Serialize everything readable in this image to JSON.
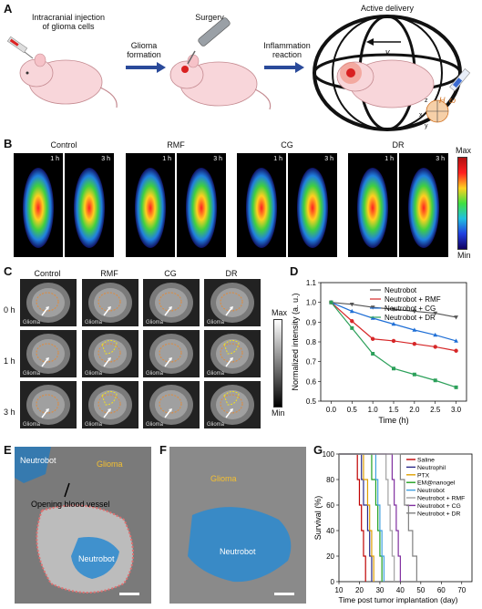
{
  "panels": {
    "A": "A",
    "B": "B",
    "C": "C",
    "D": "D",
    "E": "E",
    "F": "F",
    "G": "G"
  },
  "panelA": {
    "step1": "Intracranial injection\nof glioma cells",
    "arrow1": "Glioma\nformation",
    "step2": "Surgery",
    "arrow2": "Inflammation\nreaction",
    "step3": "Active delivery",
    "v_label": "v",
    "h_label": "H",
    "omega_label": "ω",
    "axis_z": "z",
    "axis_x": "x",
    "axis_y": "y"
  },
  "panelB": {
    "groups": [
      "Control",
      "RMF",
      "CG",
      "DR"
    ],
    "times": [
      "1 h",
      "3 h"
    ],
    "scale_max": "Max",
    "scale_min": "Min"
  },
  "panelC": {
    "groups": [
      "Control",
      "RMF",
      "CG",
      "DR"
    ],
    "rows": [
      "0 h",
      "1 h",
      "3 h"
    ],
    "glioma_label": "Glioma",
    "scale_max": "Max",
    "scale_min": "Min"
  },
  "chart_data": [
    {
      "type": "line",
      "panel": "D",
      "xlabel": "Time (h)",
      "ylabel": "Normalized intensity (a. u.)",
      "xlim": [
        -0.25,
        3.25
      ],
      "ylim": [
        0.5,
        1.1
      ],
      "xticks": [
        0.0,
        0.5,
        1.0,
        1.5,
        2.0,
        2.5,
        3.0
      ],
      "yticks": [
        0.5,
        0.6,
        0.7,
        0.8,
        0.9,
        1.0,
        1.1
      ],
      "legend_position": "top-right",
      "x": [
        0.0,
        0.5,
        1.0,
        1.5,
        2.0,
        2.5,
        3.0
      ],
      "series": [
        {
          "name": "Neutrobot",
          "color": "#555555",
          "marker": "triangle-down",
          "values": [
            1.0,
            0.99,
            0.975,
            0.965,
            0.955,
            0.945,
            0.925
          ]
        },
        {
          "name": "Neutrobot + RMF",
          "color": "#d62728",
          "marker": "circle",
          "values": [
            1.0,
            0.905,
            0.815,
            0.805,
            0.79,
            0.775,
            0.755
          ]
        },
        {
          "name": "Neutrobot + CG",
          "color": "#1f6fd6",
          "marker": "triangle-up",
          "values": [
            1.0,
            0.955,
            0.92,
            0.89,
            0.86,
            0.835,
            0.805
          ]
        },
        {
          "name": "Neutrobot + DR",
          "color": "#2ca05a",
          "marker": "square",
          "values": [
            1.0,
            0.87,
            0.74,
            0.665,
            0.635,
            0.605,
            0.57
          ]
        }
      ]
    },
    {
      "type": "line",
      "panel": "G",
      "xlabel": "Time post tumor implantation (day)",
      "ylabel": "Survival (%)",
      "xlim": [
        10,
        75
      ],
      "ylim": [
        0,
        100
      ],
      "xticks": [
        10,
        20,
        30,
        40,
        50,
        60,
        70
      ],
      "yticks": [
        0,
        20,
        40,
        60,
        80,
        100
      ],
      "legend_position": "top-right",
      "series": [
        {
          "name": "Saline",
          "color": "#c00000",
          "steps": [
            [
              0,
              100
            ],
            [
              19,
              100
            ],
            [
              19,
              80
            ],
            [
              20,
              80
            ],
            [
              20,
              60
            ],
            [
              21,
              60
            ],
            [
              21,
              40
            ],
            [
              22,
              40
            ],
            [
              22,
              20
            ],
            [
              23,
              20
            ],
            [
              23,
              0
            ]
          ]
        },
        {
          "name": "Neutrophil",
          "color": "#2a2a8a",
          "steps": [
            [
              0,
              100
            ],
            [
              21,
              100
            ],
            [
              21,
              80
            ],
            [
              22,
              80
            ],
            [
              22,
              60
            ],
            [
              24,
              60
            ],
            [
              24,
              40
            ],
            [
              25,
              40
            ],
            [
              25,
              20
            ],
            [
              26,
              20
            ],
            [
              26,
              0
            ]
          ]
        },
        {
          "name": "PTX",
          "color": "#e0a000",
          "steps": [
            [
              0,
              100
            ],
            [
              22,
              100
            ],
            [
              22,
              80
            ],
            [
              24,
              80
            ],
            [
              24,
              60
            ],
            [
              25,
              60
            ],
            [
              25,
              40
            ],
            [
              26,
              40
            ],
            [
              26,
              20
            ],
            [
              27,
              20
            ],
            [
              27,
              0
            ]
          ]
        },
        {
          "name": "EM@nanogel",
          "color": "#20a020",
          "steps": [
            [
              0,
              100
            ],
            [
              26,
              100
            ],
            [
              26,
              80
            ],
            [
              28,
              80
            ],
            [
              28,
              60
            ],
            [
              29,
              60
            ],
            [
              29,
              40
            ],
            [
              30,
              40
            ],
            [
              30,
              20
            ],
            [
              31,
              20
            ],
            [
              31,
              0
            ]
          ]
        },
        {
          "name": "Neutrobot",
          "color": "#40a0e0",
          "steps": [
            [
              0,
              100
            ],
            [
              28,
              100
            ],
            [
              28,
              80
            ],
            [
              29,
              80
            ],
            [
              29,
              60
            ],
            [
              30,
              60
            ],
            [
              30,
              40
            ],
            [
              31,
              40
            ],
            [
              31,
              20
            ],
            [
              32,
              20
            ],
            [
              32,
              0
            ]
          ]
        },
        {
          "name": "Neutrobot + RMF",
          "color": "#a0a0a0",
          "steps": [
            [
              0,
              100
            ],
            [
              33,
              100
            ],
            [
              33,
              80
            ],
            [
              34,
              80
            ],
            [
              34,
              60
            ],
            [
              35,
              60
            ],
            [
              35,
              40
            ],
            [
              36,
              40
            ],
            [
              36,
              20
            ],
            [
              37,
              20
            ],
            [
              37,
              0
            ]
          ]
        },
        {
          "name": "Neutrobot + CG",
          "color": "#8030a0",
          "steps": [
            [
              0,
              100
            ],
            [
              36,
              100
            ],
            [
              36,
              80
            ],
            [
              37,
              80
            ],
            [
              37,
              60
            ],
            [
              38,
              60
            ],
            [
              38,
              40
            ],
            [
              39,
              40
            ],
            [
              39,
              20
            ],
            [
              40,
              20
            ],
            [
              40,
              0
            ]
          ]
        },
        {
          "name": "Neutrobot + DR",
          "color": "#808080",
          "steps": [
            [
              0,
              100
            ],
            [
              40,
              100
            ],
            [
              40,
              80
            ],
            [
              42,
              80
            ],
            [
              42,
              60
            ],
            [
              44,
              60
            ],
            [
              44,
              40
            ],
            [
              46,
              40
            ],
            [
              46,
              20
            ],
            [
              48,
              20
            ],
            [
              48,
              0
            ]
          ]
        }
      ]
    }
  ],
  "panelE": {
    "neutrobot1": "Neutrobot",
    "glioma": "Glioma",
    "vessel": "Opening blood vessel",
    "neutrobot2": "Neutrobot"
  },
  "panelF": {
    "glioma": "Glioma",
    "neutrobot": "Neutrobot"
  }
}
